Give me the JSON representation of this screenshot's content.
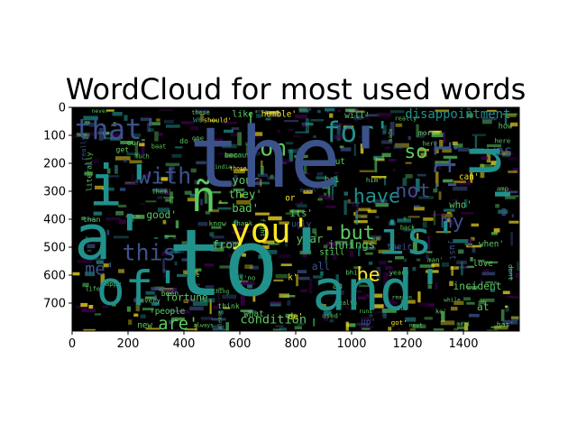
{
  "chart_data": {
    "type": "image",
    "title": "WordCloud for most used words",
    "xlabel": "",
    "ylabel": "",
    "xlim": [
      0,
      1600
    ],
    "ylim": [
      800,
      0
    ],
    "x_ticks": [
      0,
      200,
      400,
      600,
      800,
      1000,
      1200,
      1400
    ],
    "y_ticks": [
      0,
      100,
      200,
      300,
      400,
      500,
      600,
      700
    ],
    "background": "#000000",
    "colormap": [
      "#440154",
      "#3b528b",
      "#21918c",
      "#5ec962",
      "#fde725"
    ],
    "words": [
      {
        "text": "the'",
        "x": 780,
        "y": 180,
        "size": 300,
        "color": "#3b528b"
      },
      {
        "text": "to'",
        "x": 640,
        "y": 560,
        "size": 330,
        "color": "#21918c"
      },
      {
        "text": "and'",
        "x": 1100,
        "y": 655,
        "size": 200,
        "color": "#21918c"
      },
      {
        "text": "of'",
        "x": 240,
        "y": 650,
        "size": 170,
        "color": "#21918c"
      },
      {
        "text": "a'",
        "x": 140,
        "y": 470,
        "size": 220,
        "color": "#21918c"
      },
      {
        "text": "i'",
        "x": 180,
        "y": 280,
        "size": 200,
        "color": "#21918c"
      },
      {
        "text": "is'",
        "x": 1240,
        "y": 470,
        "size": 160,
        "color": "#21918c"
      },
      {
        "text": "n'",
        "x": 1490,
        "y": 250,
        "size": 200,
        "color": "#21918c",
        "rotate": 90
      },
      {
        "text": "you'",
        "x": 710,
        "y": 440,
        "size": 120,
        "color": "#fde725"
      },
      {
        "text": "ñ",
        "x": 470,
        "y": 320,
        "size": 150,
        "color": "#5ec962"
      },
      {
        "text": "for'",
        "x": 1020,
        "y": 90,
        "size": 100,
        "color": "#21918c"
      },
      {
        "text": "that'",
        "x": 160,
        "y": 80,
        "size": 100,
        "color": "#3b528b"
      },
      {
        "text": "it'",
        "x": 1330,
        "y": 210,
        "size": 110,
        "color": "#3b528b",
        "rotate": 90
      },
      {
        "text": "with",
        "x": 330,
        "y": 245,
        "size": 80,
        "color": "#3b528b"
      },
      {
        "text": "on",
        "x": 720,
        "y": 145,
        "size": 80,
        "color": "#5ec962"
      },
      {
        "text": "so",
        "x": 1230,
        "y": 160,
        "size": 70,
        "color": "#5ec962"
      },
      {
        "text": "have",
        "x": 1090,
        "y": 320,
        "size": 70,
        "color": "#21918c"
      },
      {
        "text": "not'",
        "x": 1240,
        "y": 300,
        "size": 70,
        "color": "#3b528b"
      },
      {
        "text": "this'",
        "x": 300,
        "y": 520,
        "size": 80,
        "color": "#3b528b"
      },
      {
        "text": "but",
        "x": 1020,
        "y": 450,
        "size": 70,
        "color": "#5ec962"
      },
      {
        "text": "be",
        "x": 1060,
        "y": 600,
        "size": 70,
        "color": "#fde725"
      },
      {
        "text": "my",
        "x": 1360,
        "y": 410,
        "size": 70,
        "color": "#3b528b"
      },
      {
        "text": "me'",
        "x": 100,
        "y": 580,
        "size": 60,
        "color": "#3b528b"
      },
      {
        "text": "are'",
        "x": 380,
        "y": 775,
        "size": 60,
        "color": "#5ec962"
      },
      {
        "text": "was",
        "x": 1530,
        "y": 155,
        "size": 50,
        "color": "#3b528b"
      },
      {
        "text": "disappointment",
        "x": 1380,
        "y": 25,
        "size": 45,
        "color": "#21918c"
      },
      {
        "text": "humble'",
        "x": 740,
        "y": 25,
        "size": 30,
        "color": "#fde725"
      },
      {
        "text": "will'",
        "x": 1020,
        "y": 30,
        "size": 30,
        "color": "#5ec962"
      },
      {
        "text": "really'",
        "x": 1200,
        "y": 40,
        "size": 22,
        "color": "#5ec962"
      },
      {
        "text": "like'",
        "x": 620,
        "y": 25,
        "size": 32,
        "color": "#5ec962"
      },
      {
        "text": "should'",
        "x": 520,
        "y": 45,
        "size": 24,
        "color": "#fde725"
      },
      {
        "text": "we",
        "x": 450,
        "y": 45,
        "size": 30,
        "color": "#21918c"
      },
      {
        "text": "how",
        "x": 1550,
        "y": 70,
        "size": 28,
        "color": "#5ec962"
      },
      {
        "text": "here",
        "x": 1540,
        "y": 120,
        "size": 24,
        "color": "#5ec962"
      },
      {
        "text": "because",
        "x": 600,
        "y": 170,
        "size": 26,
        "color": "#5ec962"
      },
      {
        "text": "your",
        "x": 620,
        "y": 260,
        "size": 40,
        "color": "#5ec962"
      },
      {
        "text": "they'",
        "x": 620,
        "y": 310,
        "size": 40,
        "color": "#5ec962"
      },
      {
        "text": "bad'",
        "x": 620,
        "y": 360,
        "size": 40,
        "color": "#5ec962"
      },
      {
        "text": "out",
        "x": 950,
        "y": 195,
        "size": 30,
        "color": "#5ec962"
      },
      {
        "text": "who'",
        "x": 1390,
        "y": 350,
        "size": 34,
        "color": "#5ec962"
      },
      {
        "text": "can'",
        "x": 1420,
        "y": 250,
        "size": 30,
        "color": "#fde725"
      },
      {
        "text": "him'",
        "x": 1080,
        "y": 260,
        "size": 24,
        "color": "#5ec962"
      },
      {
        "text": "its'",
        "x": 820,
        "y": 380,
        "size": 34,
        "color": "#5ec962"
      },
      {
        "text": "or",
        "x": 780,
        "y": 325,
        "size": 30,
        "color": "#fde725"
      },
      {
        "text": "even'",
        "x": 850,
        "y": 295,
        "size": 24,
        "color": "#3b528b"
      },
      {
        "text": "ugly",
        "x": 820,
        "y": 420,
        "size": 30,
        "color": "#3b528b"
      },
      {
        "text": "year",
        "x": 850,
        "y": 470,
        "size": 40,
        "color": "#5ec962"
      },
      {
        "text": "innings",
        "x": 1000,
        "y": 490,
        "size": 40,
        "color": "#5ec962"
      },
      {
        "text": "their",
        "x": 1170,
        "y": 500,
        "size": 30,
        "color": "#3b528b"
      },
      {
        "text": "from",
        "x": 550,
        "y": 490,
        "size": 40,
        "color": "#5ec962"
      },
      {
        "text": "good'",
        "x": 320,
        "y": 385,
        "size": 36,
        "color": "#5ec962"
      },
      {
        "text": "know",
        "x": 520,
        "y": 415,
        "size": 26,
        "color": "#5ec962"
      },
      {
        "text": "thank",
        "x": 610,
        "y": 415,
        "size": 24,
        "color": "#5ec962"
      },
      {
        "text": "one",
        "x": 450,
        "y": 110,
        "size": 24,
        "color": "#5ec962"
      },
      {
        "text": "do",
        "x": 400,
        "y": 120,
        "size": 26,
        "color": "#5ec962"
      },
      {
        "text": "love",
        "x": 1470,
        "y": 560,
        "size": 30,
        "color": "#5ec962"
      },
      {
        "text": "incident",
        "x": 1450,
        "y": 640,
        "size": 36,
        "color": "#5ec962"
      },
      {
        "text": "at",
        "x": 1470,
        "y": 715,
        "size": 36,
        "color": "#5ec962"
      },
      {
        "text": "when'",
        "x": 1500,
        "y": 490,
        "size": 30,
        "color": "#5ec962"
      },
      {
        "text": "just",
        "x": 1360,
        "y": 510,
        "size": 30,
        "color": "#3b528b",
        "rotate": 90
      },
      {
        "text": "condition",
        "x": 720,
        "y": 760,
        "size": 44,
        "color": "#5ec962"
      },
      {
        "text": "fortune",
        "x": 410,
        "y": 680,
        "size": 36,
        "color": "#5ec962"
      },
      {
        "text": "people",
        "x": 350,
        "y": 730,
        "size": 30,
        "color": "#5ec962"
      },
      {
        "text": "think",
        "x": 560,
        "y": 710,
        "size": 26,
        "color": "#5ec962"
      },
      {
        "text": "what",
        "x": 650,
        "y": 740,
        "size": 30,
        "color": "#5ec962"
      },
      {
        "text": "de'",
        "x": 800,
        "y": 750,
        "size": 30,
        "color": "#fde725"
      },
      {
        "text": "us'no",
        "x": 620,
        "y": 610,
        "size": 24,
        "color": "#5ec962"
      },
      {
        "text": "k'",
        "x": 790,
        "y": 610,
        "size": 30,
        "color": "#fde725"
      },
      {
        "text": "all",
        "x": 890,
        "y": 570,
        "size": 36,
        "color": "#3b528b"
      },
      {
        "text": "been",
        "x": 350,
        "y": 665,
        "size": 26,
        "color": "#5ec962"
      },
      {
        "text": "up'",
        "x": 1060,
        "y": 770,
        "size": 30,
        "color": "#3b528b"
      },
      {
        "text": "has'",
        "x": 1550,
        "y": 775,
        "size": 26,
        "color": "#5ec962"
      },
      {
        "text": "new",
        "x": 260,
        "y": 780,
        "size": 30,
        "color": "#5ec962"
      },
      {
        "text": "years",
        "x": 1170,
        "y": 590,
        "size": 24,
        "color": "#5ec962"
      },
      {
        "text": "still",
        "x": 930,
        "y": 520,
        "size": 30,
        "color": "#5ec962"
      },
      {
        "text": "an",
        "x": 950,
        "y": 640,
        "size": 30,
        "color": "#5ec962"
      },
      {
        "text": "fight",
        "x": 680,
        "y": 430,
        "size": 22,
        "color": "#5ec962",
        "rotate": 90
      },
      {
        "text": "used'",
        "x": 930,
        "y": 745,
        "size": 24,
        "color": "#5ec962"
      },
      {
        "text": "got'",
        "x": 1170,
        "y": 770,
        "size": 24,
        "color": "#fde725"
      },
      {
        "text": "next",
        "x": 1230,
        "y": 780,
        "size": 20,
        "color": "#5ec962"
      },
      {
        "text": "literally",
        "x": 60,
        "y": 230,
        "size": 26,
        "color": "#5ec962",
        "rotate": -90
      },
      {
        "text": "really'",
        "x": 40,
        "y": 140,
        "size": 24,
        "color": "#3b528b",
        "rotate": -90
      },
      {
        "text": "get",
        "x": 180,
        "y": 150,
        "size": 26,
        "color": "#5ec962"
      },
      {
        "text": "much",
        "x": 250,
        "y": 175,
        "size": 22,
        "color": "#5ec962"
      },
      {
        "text": "our",
        "x": 220,
        "y": 125,
        "size": 26,
        "color": "#5ec962"
      },
      {
        "text": "baat",
        "x": 310,
        "y": 140,
        "size": 22,
        "color": "#5ec962"
      },
      {
        "text": "them'",
        "x": 320,
        "y": 300,
        "size": 24,
        "color": "#5ec962"
      },
      {
        "text": "than",
        "x": 70,
        "y": 400,
        "size": 26,
        "color": "#5ec962"
      },
      {
        "text": "happy",
        "x": 140,
        "y": 630,
        "size": 24,
        "color": "#5ec962"
      },
      {
        "text": "life'",
        "x": 80,
        "y": 650,
        "size": 22,
        "color": "#5ec962"
      },
      {
        "text": "hope",
        "x": 430,
        "y": 600,
        "size": 22,
        "color": "#5ec962"
      },
      {
        "text": "man'",
        "x": 1300,
        "y": 545,
        "size": 24,
        "color": "#5ec962"
      },
      {
        "text": "more",
        "x": 1270,
        "y": 90,
        "size": 26,
        "color": "#5ec962"
      },
      {
        "text": "here",
        "x": 1280,
        "y": 130,
        "size": 22,
        "color": "#5ec962"
      },
      {
        "text": "made",
        "x": 1140,
        "y": 100,
        "size": 20,
        "color": "#5ec962",
        "rotate": -90
      },
      {
        "text": "hai",
        "x": 930,
        "y": 260,
        "size": 30,
        "color": "#5ec962"
      },
      {
        "text": "back",
        "x": 1200,
        "y": 430,
        "size": 22,
        "color": "#5ec962"
      },
      {
        "text": "meri",
        "x": 1400,
        "y": 775,
        "size": 20,
        "color": "#5ec962"
      },
      {
        "text": "health",
        "x": 980,
        "y": 700,
        "size": 22,
        "color": "#5ec962"
      },
      {
        "text": "bhi",
        "x": 1000,
        "y": 590,
        "size": 24,
        "color": "#5ec962"
      },
      {
        "text": "every",
        "x": 280,
        "y": 690,
        "size": 24,
        "color": "#5ec962"
      },
      {
        "text": "always",
        "x": 470,
        "y": 780,
        "size": 20,
        "color": "#5ec962"
      },
      {
        "text": "please",
        "x": 530,
        "y": 760,
        "size": 18,
        "color": "#5ec962",
        "rotate": -90
      },
      {
        "text": "ke'",
        "x": 1320,
        "y": 730,
        "size": 22,
        "color": "#5ec962"
      },
      {
        "text": "amp",
        "x": 1540,
        "y": 290,
        "size": 24,
        "color": "#5ec962"
      },
      {
        "text": "india",
        "x": 540,
        "y": 215,
        "size": 20,
        "color": "#5ec962"
      },
      {
        "text": "these",
        "x": 460,
        "y": 20,
        "size": 22,
        "color": "#5ec962"
      },
      {
        "text": "never",
        "x": 100,
        "y": 15,
        "size": 20,
        "color": "#5ec962"
      },
      {
        "text": "those'",
        "x": 600,
        "y": 220,
        "size": 20,
        "color": "#fde725"
      },
      {
        "text": "while",
        "x": 1360,
        "y": 690,
        "size": 20,
        "color": "#5ec962"
      },
      {
        "text": "reason",
        "x": 1180,
        "y": 680,
        "size": 20,
        "color": "#5ec962"
      },
      {
        "text": "its",
        "x": 1180,
        "y": 720,
        "size": 22,
        "color": "#5ec962"
      },
      {
        "text": "dont",
        "x": 1570,
        "y": 590,
        "size": 24,
        "color": "#5ec962",
        "rotate": 90
      },
      {
        "text": "nothing",
        "x": 520,
        "y": 660,
        "size": 20,
        "color": "#5ec962"
      },
      {
        "text": "runs",
        "x": 1050,
        "y": 730,
        "size": 20,
        "color": "#5ec962"
      }
    ]
  }
}
